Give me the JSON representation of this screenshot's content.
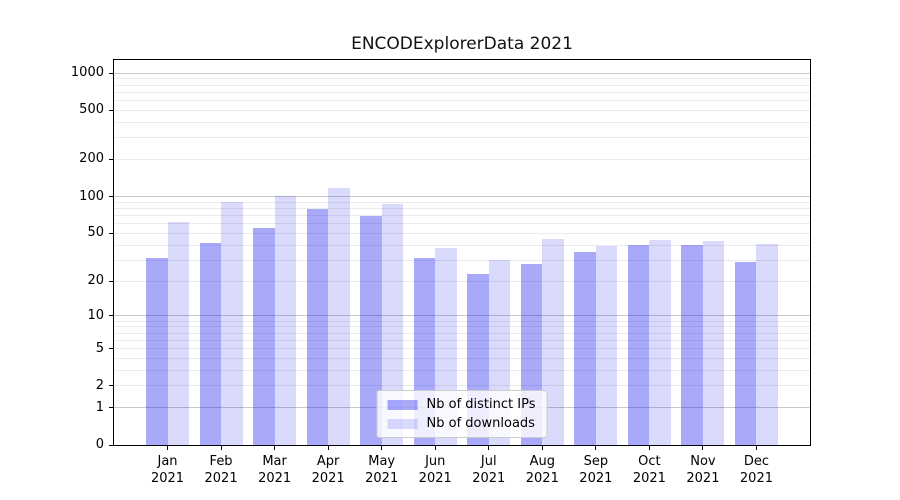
{
  "chart_data": {
    "type": "bar",
    "title": "ENCODExplorerData 2021",
    "x_categories": [
      "Jan",
      "Feb",
      "Mar",
      "Apr",
      "May",
      "Jun",
      "Jul",
      "Aug",
      "Sep",
      "Oct",
      "Nov",
      "Dec"
    ],
    "x_year": "2021",
    "series": [
      {
        "name": "Nb of distinct IPs",
        "key": "distinct-ips",
        "color": "rgba(10,10,240,0.35)",
        "values": [
          31,
          42,
          55,
          79,
          70,
          31,
          23,
          28,
          35,
          40,
          40,
          29
        ]
      },
      {
        "name": "Nb of downloads",
        "key": "downloads",
        "color": "rgba(10,10,240,0.15)",
        "values": [
          62,
          90,
          101,
          118,
          87,
          38,
          30,
          45,
          39,
          44,
          43,
          41
        ]
      }
    ],
    "y_scale": "log1p",
    "ylim": [
      0,
      1275
    ],
    "y_ticks": [
      0,
      1,
      2,
      5,
      10,
      20,
      50,
      100,
      200,
      500,
      1000
    ],
    "grid": {
      "major_values": [
        1,
        10,
        100,
        1000
      ],
      "minor_values": [
        2,
        3,
        4,
        5,
        6,
        7,
        8,
        9,
        20,
        30,
        40,
        50,
        60,
        70,
        80,
        90,
        200,
        300,
        400,
        500,
        600,
        700,
        800,
        900
      ],
      "major_color": "#c9c9c9",
      "minor_color": "#ebebeb"
    },
    "legend_position": "lower center",
    "background_color": "#ffffff",
    "spine_color": "#000000"
  }
}
